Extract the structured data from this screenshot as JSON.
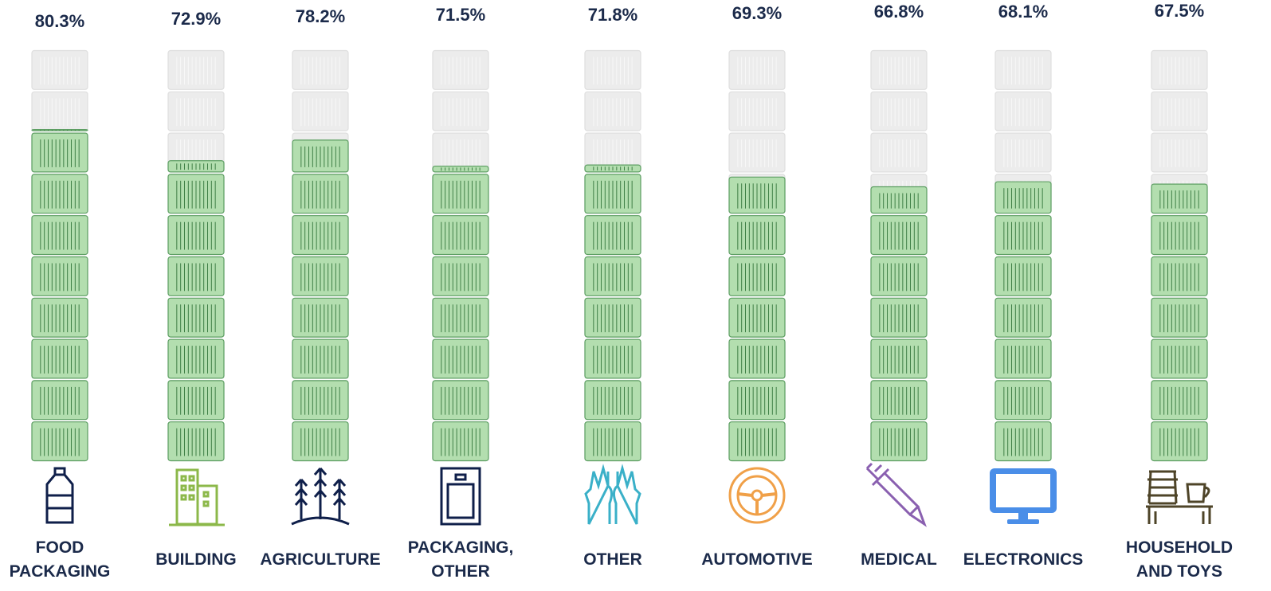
{
  "chart_data": {
    "type": "pictograph",
    "categories": [
      "FOOD PACKAGING",
      "BUILDING",
      "AGRICULTURE",
      "PACKAGING, OTHER",
      "OTHER",
      "AUTOMOTIVE",
      "MEDICAL",
      "ELECTRONICS",
      "HOUSEHOLD AND TOYS"
    ],
    "values": [
      80.3,
      72.9,
      78.2,
      71.5,
      71.8,
      69.3,
      66.8,
      68.1,
      67.5
    ],
    "value_labels": [
      "80.3%",
      "72.9%",
      "78.2%",
      "71.5%",
      "71.8%",
      "69.3%",
      "66.8%",
      "68.1%",
      "67.5%"
    ],
    "ylim": [
      0,
      100
    ],
    "color": "#b3deaf"
  }
}
